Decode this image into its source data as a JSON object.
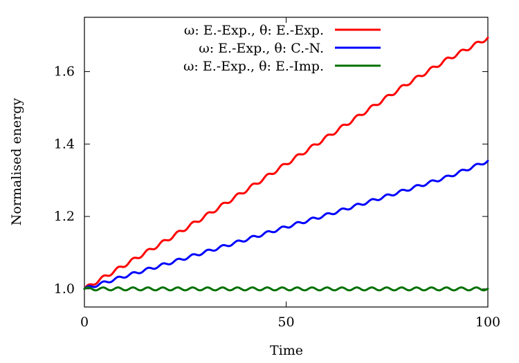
{
  "chart_data": {
    "type": "line",
    "title": "",
    "xlabel": "Time",
    "ylabel": "Normalised energy",
    "xlim": [
      0,
      100
    ],
    "ylim": [
      0.95,
      1.75
    ],
    "xticks": [
      0,
      50,
      100
    ],
    "xtick_labels": [
      "0",
      "50",
      "100"
    ],
    "yticks": [
      1.0,
      1.2,
      1.4,
      1.6
    ],
    "ytick_labels": [
      "1.0",
      "1.2",
      "1.4",
      "1.6"
    ],
    "grid": false,
    "legend_position": "top-right",
    "series": [
      {
        "name": "ω: E.-Exp., θ: E.-Exp.",
        "color": "#ff0000",
        "x": [
          0,
          10,
          20,
          30,
          40,
          50,
          60,
          70,
          80,
          90,
          100
        ],
        "y": [
          1.0,
          1.066,
          1.132,
          1.201,
          1.272,
          1.345,
          1.418,
          1.492,
          1.566,
          1.634,
          1.693
        ]
      },
      {
        "name": "ω: E.-Exp., θ: C.-N.",
        "color": "#0000ff",
        "x": [
          0,
          10,
          20,
          30,
          40,
          50,
          60,
          70,
          80,
          90,
          100
        ],
        "y": [
          1.0,
          1.035,
          1.068,
          1.102,
          1.136,
          1.171,
          1.204,
          1.239,
          1.274,
          1.309,
          1.353
        ]
      },
      {
        "name": "ω: E.-Exp., θ: E.-Imp.",
        "color": "#007000",
        "x": [
          0,
          10,
          20,
          30,
          40,
          50,
          60,
          70,
          80,
          90,
          100
        ],
        "y": [
          1.0,
          1.0,
          1.0,
          1.0,
          1.0,
          1.0,
          1.0,
          1.0,
          1.0,
          1.0,
          1.0
        ]
      }
    ]
  }
}
